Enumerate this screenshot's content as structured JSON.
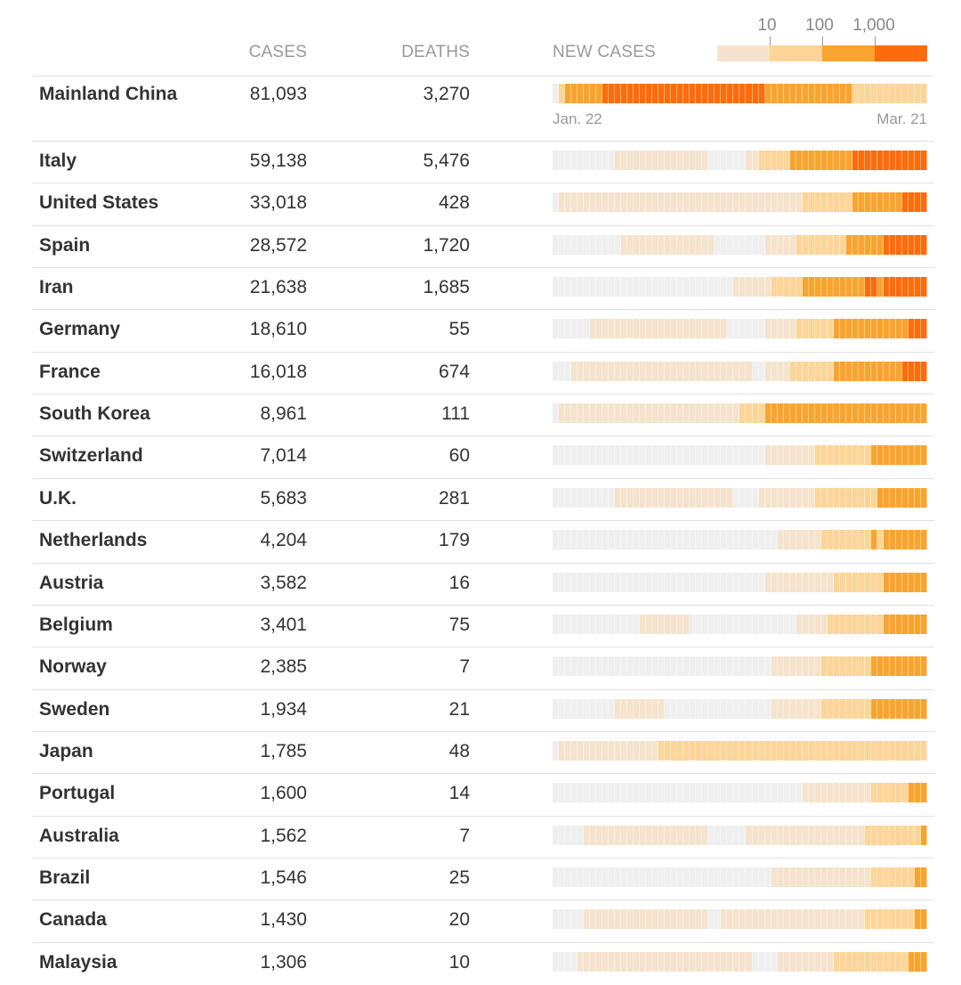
{
  "headers": {
    "cases": "CASES",
    "deaths": "DEATHS",
    "new_cases": "NEW CASES"
  },
  "chart_data": {
    "type": "heatmap",
    "xlabel": "",
    "x_start_label": "Jan. 22",
    "x_end_label": "Mar. 21",
    "days": 60,
    "legend": {
      "ticks": [
        "10",
        "100",
        "1,000"
      ],
      "levels": [
        "0",
        "1–9",
        "10–99",
        "100–999",
        "1,000+"
      ],
      "colors": [
        "#efefef",
        "#f5e3cd",
        "#fdd598",
        "#f9a42e",
        "#fc6c0c"
      ]
    },
    "rows": [
      {
        "country": "Mainland China",
        "cases": "81,093",
        "deaths": "3,270",
        "runs": [
          [
            0,
            1
          ],
          [
            2,
            1
          ],
          [
            3,
            6
          ],
          [
            4,
            26
          ],
          [
            3,
            14
          ],
          [
            2,
            12
          ]
        ]
      },
      {
        "country": "Italy",
        "cases": "59,138",
        "deaths": "5,476",
        "runs": [
          [
            0,
            10
          ],
          [
            1,
            15
          ],
          [
            0,
            6
          ],
          [
            1,
            2
          ],
          [
            2,
            5
          ],
          [
            3,
            10
          ],
          [
            4,
            12
          ]
        ]
      },
      {
        "country": "United States",
        "cases": "33,018",
        "deaths": "428",
        "runs": [
          [
            0,
            1
          ],
          [
            1,
            39
          ],
          [
            2,
            8
          ],
          [
            3,
            8
          ],
          [
            4,
            4
          ]
        ]
      },
      {
        "country": "Spain",
        "cases": "28,572",
        "deaths": "1,720",
        "runs": [
          [
            0,
            11
          ],
          [
            1,
            15
          ],
          [
            0,
            8
          ],
          [
            1,
            5
          ],
          [
            2,
            8
          ],
          [
            3,
            6
          ],
          [
            4,
            7
          ]
        ]
      },
      {
        "country": "Iran",
        "cases": "21,638",
        "deaths": "1,685",
        "runs": [
          [
            0,
            29
          ],
          [
            1,
            6
          ],
          [
            2,
            5
          ],
          [
            3,
            10
          ],
          [
            4,
            2
          ],
          [
            3,
            1
          ],
          [
            4,
            7
          ]
        ]
      },
      {
        "country": "Germany",
        "cases": "18,610",
        "deaths": "55",
        "runs": [
          [
            0,
            6
          ],
          [
            1,
            22
          ],
          [
            0,
            6
          ],
          [
            1,
            5
          ],
          [
            2,
            6
          ],
          [
            3,
            12
          ],
          [
            4,
            3
          ]
        ]
      },
      {
        "country": "France",
        "cases": "16,018",
        "deaths": "674",
        "runs": [
          [
            0,
            3
          ],
          [
            1,
            29
          ],
          [
            0,
            2
          ],
          [
            1,
            4
          ],
          [
            2,
            7
          ],
          [
            3,
            11
          ],
          [
            4,
            4
          ]
        ]
      },
      {
        "country": "South Korea",
        "cases": "8,961",
        "deaths": "111",
        "runs": [
          [
            0,
            1
          ],
          [
            1,
            29
          ],
          [
            2,
            4
          ],
          [
            3,
            26
          ]
        ]
      },
      {
        "country": "Switzerland",
        "cases": "7,014",
        "deaths": "60",
        "runs": [
          [
            0,
            34
          ],
          [
            1,
            8
          ],
          [
            2,
            9
          ],
          [
            3,
            9
          ]
        ]
      },
      {
        "country": "U.K.",
        "cases": "5,683",
        "deaths": "281",
        "runs": [
          [
            0,
            10
          ],
          [
            1,
            19
          ],
          [
            0,
            4
          ],
          [
            1,
            9
          ],
          [
            2,
            10
          ],
          [
            3,
            8
          ]
        ]
      },
      {
        "country": "Netherlands",
        "cases": "4,204",
        "deaths": "179",
        "runs": [
          [
            0,
            36
          ],
          [
            1,
            7
          ],
          [
            2,
            8
          ],
          [
            3,
            1
          ],
          [
            2,
            1
          ],
          [
            3,
            7
          ]
        ]
      },
      {
        "country": "Austria",
        "cases": "3,582",
        "deaths": "16",
        "runs": [
          [
            0,
            34
          ],
          [
            1,
            11
          ],
          [
            2,
            8
          ],
          [
            3,
            7
          ]
        ]
      },
      {
        "country": "Belgium",
        "cases": "3,401",
        "deaths": "75",
        "runs": [
          [
            0,
            14
          ],
          [
            1,
            8
          ],
          [
            0,
            17
          ],
          [
            1,
            5
          ],
          [
            2,
            9
          ],
          [
            3,
            7
          ]
        ]
      },
      {
        "country": "Norway",
        "cases": "2,385",
        "deaths": "7",
        "runs": [
          [
            0,
            35
          ],
          [
            1,
            8
          ],
          [
            2,
            8
          ],
          [
            3,
            9
          ]
        ]
      },
      {
        "country": "Sweden",
        "cases": "1,934",
        "deaths": "21",
        "runs": [
          [
            0,
            10
          ],
          [
            1,
            8
          ],
          [
            0,
            17
          ],
          [
            1,
            8
          ],
          [
            2,
            8
          ],
          [
            3,
            9
          ]
        ]
      },
      {
        "country": "Japan",
        "cases": "1,785",
        "deaths": "48",
        "runs": [
          [
            0,
            1
          ],
          [
            1,
            16
          ],
          [
            2,
            43
          ]
        ]
      },
      {
        "country": "Portugal",
        "cases": "1,600",
        "deaths": "14",
        "runs": [
          [
            0,
            40
          ],
          [
            1,
            11
          ],
          [
            2,
            6
          ],
          [
            3,
            3
          ]
        ]
      },
      {
        "country": "Australia",
        "cases": "1,562",
        "deaths": "7",
        "runs": [
          [
            0,
            5
          ],
          [
            1,
            20
          ],
          [
            0,
            6
          ],
          [
            1,
            19
          ],
          [
            2,
            9
          ],
          [
            3,
            1
          ]
        ]
      },
      {
        "country": "Brazil",
        "cases": "1,546",
        "deaths": "25",
        "runs": [
          [
            0,
            35
          ],
          [
            1,
            16
          ],
          [
            2,
            7
          ],
          [
            3,
            2
          ]
        ]
      },
      {
        "country": "Canada",
        "cases": "1,430",
        "deaths": "20",
        "runs": [
          [
            0,
            5
          ],
          [
            1,
            20
          ],
          [
            0,
            2
          ],
          [
            1,
            23
          ],
          [
            2,
            8
          ],
          [
            3,
            2
          ]
        ]
      },
      {
        "country": "Malaysia",
        "cases": "1,306",
        "deaths": "10",
        "runs": [
          [
            0,
            4
          ],
          [
            1,
            28
          ],
          [
            0,
            4
          ],
          [
            1,
            9
          ],
          [
            2,
            12
          ],
          [
            3,
            3
          ]
        ]
      }
    ]
  }
}
